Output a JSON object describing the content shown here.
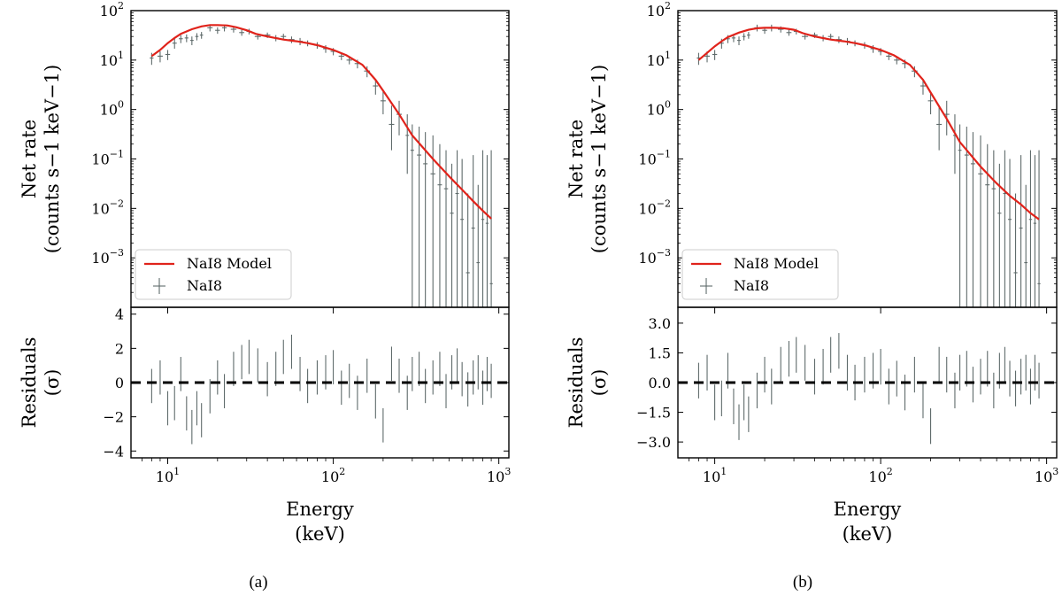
{
  "chart_data": [
    {
      "type": "line",
      "panel": "(a)",
      "caption": "(a)",
      "xlabel": "Energy",
      "xunit": "(keV)",
      "xscale": "log",
      "xlim": [
        6,
        1150
      ],
      "x_tick_labels": [
        "10",
        "10",
        "10"
      ],
      "x_tick_exponents": [
        "1",
        "2",
        "3"
      ],
      "top": {
        "ylabel": "Net rate",
        "yunit": "(counts s−1 keV−1)",
        "yscale": "log",
        "ylim": [
          0.0001,
          100
        ],
        "y_tick_labels": [
          "10",
          "10",
          "10",
          "10",
          "10",
          "10"
        ],
        "y_tick_exponents": [
          "2",
          "1",
          "0",
          "−1",
          "−2",
          "−3"
        ],
        "legend": [
          "NaI8 Model",
          "NaI8"
        ],
        "legend_location": "lower-left",
        "model": {
          "name": "NaI8 Model",
          "color": "#e0231b",
          "x": [
            8,
            9,
            10,
            11,
            12,
            14,
            16,
            18,
            20,
            23,
            26,
            30,
            34,
            40,
            50,
            60,
            70,
            80,
            100,
            120,
            150,
            180,
            200,
            250,
            300,
            400,
            500,
            600,
            700,
            800,
            900
          ],
          "y": [
            12,
            16,
            22,
            28,
            34,
            42,
            48,
            51,
            51,
            50,
            46,
            40,
            34,
            30,
            26,
            24,
            22,
            20,
            16,
            12.5,
            8,
            4,
            2.4,
            0.8,
            0.3,
            0.1,
            0.045,
            0.024,
            0.014,
            0.009,
            0.0062
          ]
        },
        "data": {
          "name": "NaI8",
          "color": "#5f6b6b",
          "x": [
            8,
            9,
            10,
            11,
            12,
            13,
            14,
            15,
            16,
            18,
            20,
            22,
            25,
            28,
            31,
            35,
            40,
            45,
            50,
            56,
            63,
            70,
            80,
            90,
            100,
            112,
            125,
            140,
            160,
            180,
            200,
            225,
            250,
            280,
            300,
            330,
            360,
            400,
            440,
            480,
            520,
            560,
            600,
            650,
            700,
            750,
            800,
            850,
            900
          ],
          "y": [
            11,
            12,
            13,
            22,
            27,
            28,
            25,
            30,
            32,
            45,
            40,
            45,
            42,
            36,
            38,
            30,
            32,
            28,
            30,
            26,
            24,
            22,
            20,
            17,
            15,
            12,
            10,
            8.5,
            6,
            3,
            1.5,
            0.5,
            0.8,
            0.3,
            0.15,
            0.12,
            0.08,
            0.05,
            0.03,
            0.025,
            0.008,
            0.02,
            0.006,
            0.0005,
            0.004,
            0.0008,
            0.006,
            0.005,
            0.0003
          ],
          "ylow": [
            8,
            9,
            10,
            17,
            22,
            23,
            20,
            25,
            27,
            38,
            34,
            38,
            36,
            31,
            33,
            26,
            28,
            24,
            26,
            22,
            20,
            19,
            17,
            14,
            12.5,
            10,
            8.2,
            6.8,
            4.5,
            2,
            0.8,
            0.15,
            0.3,
            0.05,
            0.0001,
            0.0001,
            0.0001,
            0.0001,
            0.0001,
            0.0001,
            0.0001,
            0.0001,
            0.0001,
            0.0001,
            0.0001,
            0.0001,
            0.0001,
            0.0001,
            0.0001
          ],
          "yhigh": [
            14,
            15,
            16,
            27,
            32,
            33,
            30,
            35,
            37,
            52,
            46,
            52,
            48,
            41,
            43,
            34,
            36,
            32,
            34,
            30,
            28,
            25,
            23,
            20,
            17.5,
            14,
            12,
            10.2,
            7.5,
            4,
            2.3,
            1.2,
            1.5,
            0.8,
            0.5,
            0.45,
            0.35,
            0.3,
            0.2,
            0.15,
            0.08,
            0.15,
            0.1,
            0.02,
            0.12,
            0.03,
            0.15,
            0.12,
            0.15
          ]
        }
      },
      "bottom": {
        "ylabel": "Residuals",
        "yunit": "(σ)",
        "ylim": [
          -4.4,
          4.4
        ],
        "y_ticks": [
          4,
          2,
          0,
          -2,
          -4
        ],
        "y_tick_labels": [
          "4",
          "2",
          "0",
          "−2",
          "−4"
        ],
        "residuals": {
          "x": [
            8,
            9,
            10,
            11,
            12,
            13,
            14,
            15,
            16,
            18,
            20,
            22,
            25,
            28,
            31,
            35,
            40,
            45,
            50,
            56,
            63,
            70,
            80,
            90,
            100,
            112,
            125,
            140,
            160,
            180,
            200,
            225,
            250,
            280,
            300,
            330,
            360,
            400,
            440,
            480,
            520,
            560,
            600,
            650,
            700,
            750,
            800,
            850,
            900
          ],
          "y": [
            -0.2,
            0.3,
            -1.5,
            -1.2,
            0.5,
            -1.8,
            -2.6,
            -1.5,
            -2.2,
            -0.8,
            0.3,
            -0.5,
            0.8,
            1.2,
            1.5,
            1.0,
            0.2,
            0.8,
            1.5,
            1.8,
            0.5,
            -0.2,
            0.3,
            0.6,
            0.9,
            -0.3,
            0.1,
            -0.6,
            0.4,
            -1.1,
            -2.5,
            1.1,
            0.4,
            -0.6,
            0.5,
            0.8,
            -0.2,
            0.3,
            0.8,
            -0.5,
            0.6,
            1.0,
            0.2,
            -0.4,
            0.3,
            0.6,
            -0.3,
            0.5,
            0.1
          ],
          "err": [
            1.0,
            1.0,
            1.0,
            1.0,
            1.0,
            1.0,
            1.0,
            1.0,
            1.0,
            1.0,
            1.0,
            1.0,
            1.0,
            1.0,
            1.0,
            1.0,
            1.0,
            1.0,
            1.0,
            1.0,
            1.0,
            1.0,
            1.0,
            1.0,
            1.0,
            1.0,
            1.0,
            1.0,
            1.0,
            1.0,
            1.0,
            1.0,
            1.0,
            1.0,
            1.0,
            1.0,
            1.0,
            1.0,
            1.0,
            1.0,
            1.0,
            1.0,
            1.0,
            1.0,
            1.0,
            1.0,
            1.0,
            1.0,
            1.0
          ]
        }
      }
    },
    {
      "type": "line",
      "panel": "(b)",
      "caption": "(b)",
      "xlabel": "Energy",
      "xunit": "(keV)",
      "xscale": "log",
      "xlim": [
        6,
        1150
      ],
      "x_tick_labels": [
        "10",
        "10",
        "10"
      ],
      "x_tick_exponents": [
        "1",
        "2",
        "3"
      ],
      "top": {
        "ylabel": "Net rate",
        "yunit": "(counts s−1 keV−1)",
        "yscale": "log",
        "ylim": [
          0.0001,
          100
        ],
        "y_tick_labels": [
          "10",
          "10",
          "10",
          "10",
          "10",
          "10"
        ],
        "y_tick_exponents": [
          "2",
          "1",
          "0",
          "−1",
          "−2",
          "−3"
        ],
        "legend": [
          "NaI8 Model",
          "NaI8"
        ],
        "legend_location": "lower-left",
        "model": {
          "name": "NaI8 Model",
          "color": "#e0231b",
          "x": [
            8,
            9,
            10,
            11,
            12,
            14,
            16,
            18,
            20,
            23,
            26,
            30,
            34,
            40,
            50,
            60,
            70,
            80,
            100,
            120,
            150,
            180,
            200,
            250,
            300,
            400,
            500,
            600,
            700,
            800,
            900
          ],
          "y": [
            10,
            14,
            19,
            24,
            29,
            36,
            41,
            44,
            45,
            45,
            44,
            41,
            35,
            30,
            26,
            24,
            22,
            20,
            16,
            12.5,
            8,
            4,
            2.2,
            0.65,
            0.22,
            0.07,
            0.032,
            0.018,
            0.012,
            0.008,
            0.006
          ]
        },
        "data": {
          "name": "NaI8",
          "color": "#5f6b6b",
          "x": [
            8,
            9,
            10,
            11,
            12,
            13,
            14,
            15,
            16,
            18,
            20,
            22,
            25,
            28,
            31,
            35,
            40,
            45,
            50,
            56,
            63,
            70,
            80,
            90,
            100,
            112,
            125,
            140,
            160,
            180,
            200,
            225,
            250,
            280,
            300,
            330,
            360,
            400,
            440,
            480,
            520,
            560,
            600,
            650,
            700,
            750,
            800,
            850,
            900
          ],
          "y": [
            11,
            12,
            13,
            22,
            27,
            28,
            25,
            30,
            32,
            45,
            40,
            45,
            42,
            36,
            38,
            30,
            32,
            28,
            30,
            26,
            24,
            22,
            20,
            17,
            15,
            12,
            10,
            8.5,
            6,
            3,
            1.5,
            0.5,
            0.8,
            0.3,
            0.15,
            0.12,
            0.08,
            0.05,
            0.03,
            0.025,
            0.008,
            0.02,
            0.006,
            0.0005,
            0.004,
            0.0008,
            0.006,
            0.005,
            0.0003
          ],
          "ylow": [
            8,
            9,
            10,
            17,
            22,
            23,
            20,
            25,
            27,
            38,
            34,
            38,
            36,
            31,
            33,
            26,
            28,
            24,
            26,
            22,
            20,
            19,
            17,
            14,
            12.5,
            10,
            8.2,
            6.8,
            4.5,
            2,
            0.8,
            0.15,
            0.3,
            0.05,
            0.0001,
            0.0001,
            0.0001,
            0.0001,
            0.0001,
            0.0001,
            0.0001,
            0.0001,
            0.0001,
            0.0001,
            0.0001,
            0.0001,
            0.0001,
            0.0001,
            0.0001
          ],
          "yhigh": [
            14,
            15,
            16,
            27,
            32,
            33,
            30,
            35,
            37,
            52,
            46,
            52,
            48,
            41,
            43,
            34,
            36,
            32,
            34,
            30,
            28,
            25,
            23,
            20,
            17.5,
            14,
            12,
            10.2,
            7.5,
            4,
            2.3,
            1.2,
            1.5,
            0.8,
            0.5,
            0.45,
            0.35,
            0.3,
            0.2,
            0.15,
            0.08,
            0.15,
            0.1,
            0.02,
            0.12,
            0.03,
            0.15,
            0.12,
            0.15
          ]
        }
      },
      "bottom": {
        "ylabel": "Residuals",
        "yunit": "(σ)",
        "ylim": [
          -3.8,
          3.8
        ],
        "y_ticks": [
          3.0,
          1.5,
          0.0,
          -1.5,
          -3.0
        ],
        "y_tick_labels": [
          "3.0",
          "1.5",
          "0.0",
          "−1.5",
          "−3.0"
        ],
        "residuals": {
          "x": [
            8,
            9,
            10,
            11,
            12,
            13,
            14,
            15,
            16,
            18,
            20,
            22,
            25,
            28,
            31,
            35,
            40,
            45,
            50,
            56,
            63,
            70,
            80,
            90,
            100,
            112,
            125,
            140,
            160,
            180,
            200,
            225,
            250,
            280,
            300,
            330,
            360,
            400,
            440,
            480,
            520,
            560,
            600,
            650,
            700,
            750,
            800,
            850,
            900
          ],
          "y": [
            0.1,
            0.5,
            -1.0,
            -0.8,
            0.6,
            -1.2,
            -2.0,
            -1.0,
            -1.6,
            -0.4,
            0.4,
            -0.2,
            0.9,
            1.2,
            1.4,
            1.0,
            0.3,
            0.8,
            1.4,
            1.6,
            0.5,
            0.0,
            0.4,
            0.6,
            0.8,
            -0.2,
            0.2,
            -0.5,
            0.4,
            -0.9,
            -2.2,
            0.9,
            0.4,
            -0.4,
            0.5,
            0.7,
            -0.1,
            0.3,
            0.7,
            -0.4,
            0.6,
            0.9,
            0.2,
            -0.3,
            0.3,
            0.5,
            -0.2,
            0.5,
            0.1
          ],
          "err": [
            0.9,
            0.9,
            0.9,
            0.9,
            0.9,
            0.9,
            0.9,
            0.9,
            0.9,
            0.9,
            0.9,
            0.9,
            0.9,
            0.9,
            0.9,
            0.9,
            0.9,
            0.9,
            0.9,
            0.9,
            0.9,
            0.9,
            0.9,
            0.9,
            0.9,
            0.9,
            0.9,
            0.9,
            0.9,
            0.9,
            0.9,
            0.9,
            0.9,
            0.9,
            0.9,
            0.9,
            0.9,
            0.9,
            0.9,
            0.9,
            0.9,
            0.9,
            0.9,
            0.9,
            0.9,
            0.9,
            0.9,
            0.9,
            0.9
          ]
        }
      }
    }
  ]
}
